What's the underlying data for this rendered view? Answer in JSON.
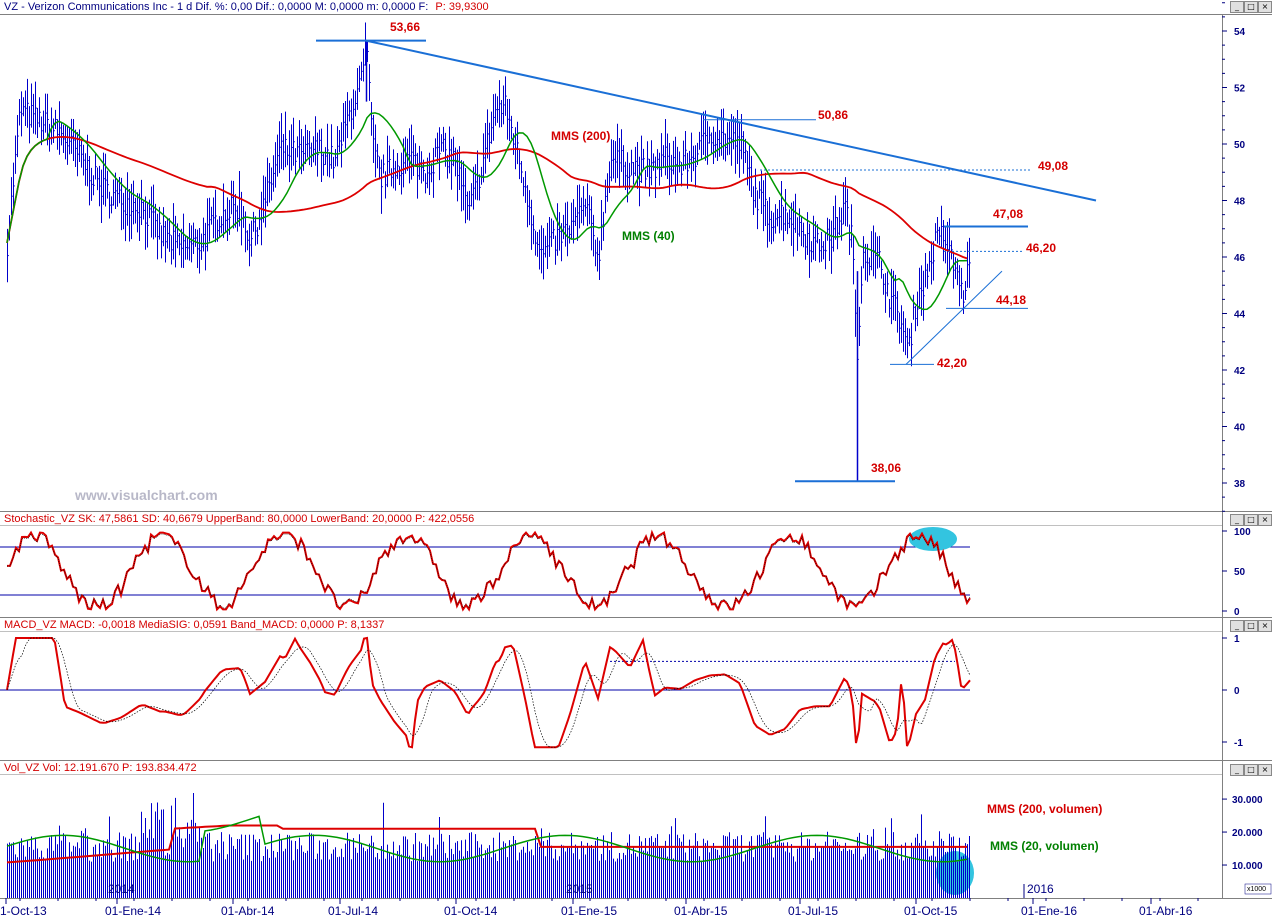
{
  "header": {
    "ticker": "VZ",
    "title_line": "VZ - Verizon Communications Inc - 1 d Dif. %: 0,00 Dif.: 0,0000 M: 0,0000 m: 0,0000 F:",
    "last_label": "P: 39,9300"
  },
  "watermark": "www.visualchart.com",
  "colors": {
    "price": "#0000cc",
    "mms200": "#dd0000",
    "mms40": "#009900",
    "trendline": "#1a6fd6",
    "axis": "#000080",
    "highlight": "#33c4e0"
  },
  "chart_data": [
    {
      "type": "line",
      "name": "price",
      "yaxis_ticks": [
        "54",
        "52",
        "50",
        "48",
        "46",
        "44",
        "42",
        "40",
        "38"
      ],
      "ylim": [
        37,
        55
      ],
      "x_ticks": [
        "1-Oct-13",
        "01-Ene-14",
        "01-Abr-14",
        "01-Jul-14",
        "01-Oct-14",
        "01-Ene-15",
        "01-Abr-15",
        "01-Jul-15",
        "01-Oct-15",
        "01-Ene-16",
        "01-Abr-16"
      ],
      "series": [
        {
          "name": "MMS (200)"
        },
        {
          "name": "MMS (40)"
        }
      ],
      "annotations": {
        "high": "53,66",
        "peak2": "50,86",
        "level_a": "49,08",
        "level_b": "47,08",
        "level_c": "46,20",
        "level_d": "44,18",
        "level_e": "42,20",
        "low": "38,06",
        "mms200_label": "MMS (200)",
        "mms40_label": "MMS (40)"
      }
    },
    {
      "type": "line",
      "name": "stochastic",
      "header": "Stochastic_VZ SK: 47,5861 SD: 40,6679 UpperBand: 80,0000 LowerBand: 20,0000 P: 422,0556",
      "yaxis_ticks": [
        "100",
        "50",
        "0"
      ],
      "upper_band": 80,
      "lower_band": 20
    },
    {
      "type": "line",
      "name": "macd",
      "header": "MACD_VZ MACD: -0,0018 MediaSIG: 0,0591 Band_MACD: 0,0000 P: 8,1337",
      "yaxis_ticks": [
        "1",
        "0",
        "-1"
      ]
    },
    {
      "type": "bar",
      "name": "volume",
      "header": "Vol_VZ Vol: 12.191.670 P: 193.834.472",
      "yaxis_ticks": [
        "30.000",
        "20.000",
        "10.000"
      ],
      "unit_label": "x1000",
      "year_labels": [
        "2014",
        "2015",
        "2016"
      ],
      "annotations": {
        "mms200_vol": "MMS (200, volumen)",
        "mms20_vol": "MMS (20, volumen)"
      }
    }
  ]
}
